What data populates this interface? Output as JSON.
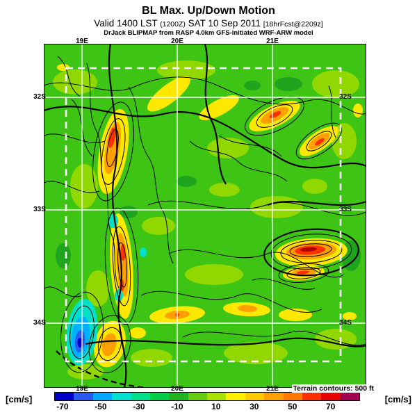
{
  "title": "BL Max. Up/Down Motion",
  "subtitle": {
    "valid": "Valid 1400 LST",
    "zulu": "(1200Z)",
    "date": "SAT 10 Sep 2011",
    "fcst": "[18hrFcst@2209z]"
  },
  "model_line": "DrJack BLIPMAP from RASP 4.0km GFS-initiated WRF-ARW model",
  "map": {
    "lon_labels": [
      "19E",
      "20E",
      "21E"
    ],
    "lat_labels": [
      "32S",
      "33S",
      "34S"
    ],
    "terrain_note": "Terrain contours: 500 ft",
    "base_color": "#3ec414",
    "light_green": "#90d800",
    "graticule_color": "#ffffff"
  },
  "colorbar": {
    "unit_left": "[cm/s]",
    "unit_right": "[cm/s]",
    "tick_labels": [
      "-70",
      "-50",
      "-30",
      "-10",
      "10",
      "30",
      "50",
      "70"
    ],
    "segment_colors": [
      "#0000c8",
      "#2858f0",
      "#00a8ff",
      "#00e0d0",
      "#00e088",
      "#00cc44",
      "#22b41e",
      "#66cc11",
      "#aae000",
      "#ffee00",
      "#ffc800",
      "#ffa000",
      "#ff7800",
      "#ff3000",
      "#e60000",
      "#a00050"
    ]
  }
}
